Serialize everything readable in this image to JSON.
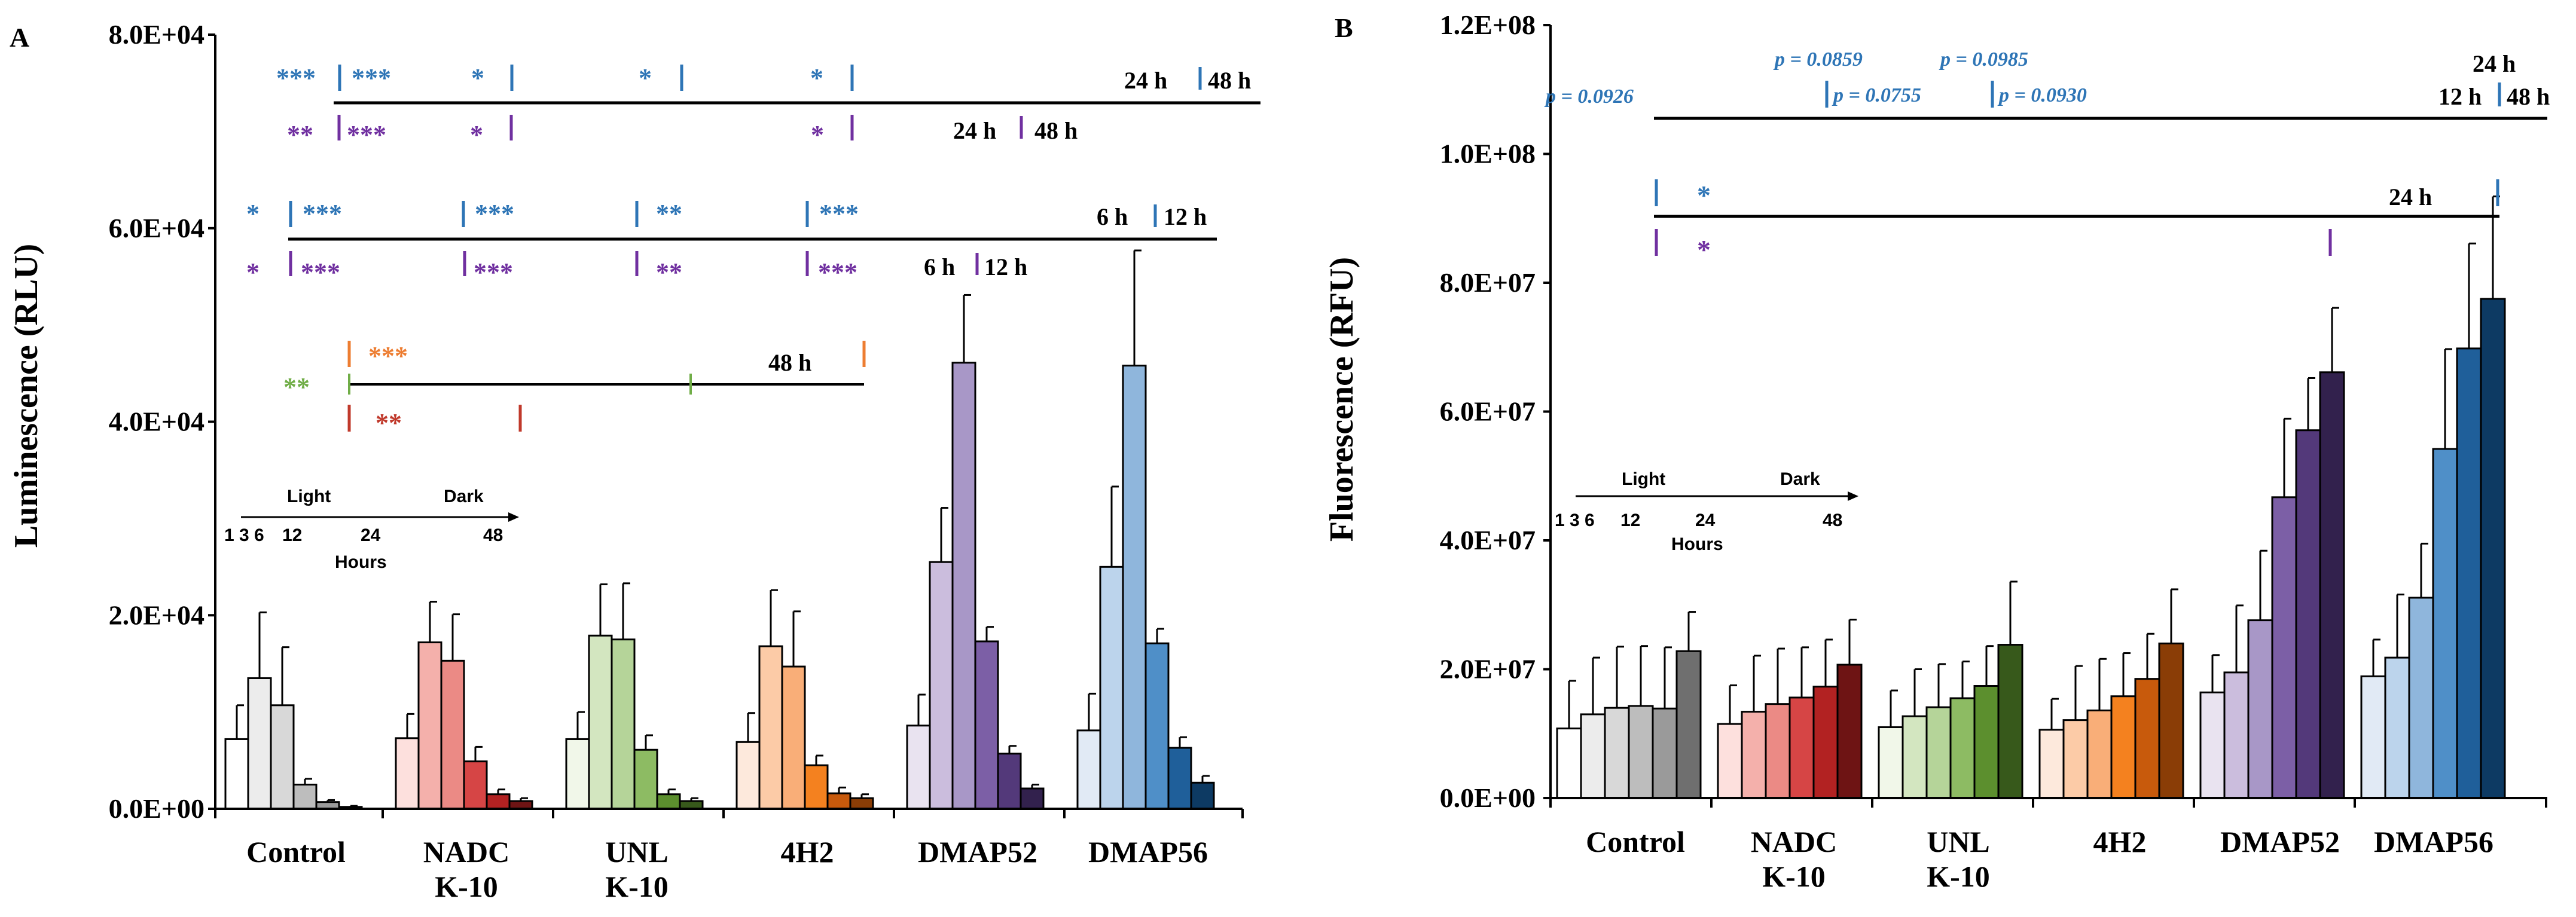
{
  "colors": {
    "axis": "#000000",
    "blue": "#2e75b6",
    "purple": "#7030a0",
    "orange": "#ed7d31",
    "green": "#70ad47",
    "red": "#c0392b"
  },
  "chart_data": [
    {
      "type": "bar",
      "panel_label": "A",
      "ylabel": "Luminescence (RLU)",
      "ylim": [
        0,
        80000
      ],
      "yticks": [
        "0.0E+00",
        "2.0E+04",
        "4.0E+04",
        "6.0E+04",
        "8.0E+04"
      ],
      "categories": [
        "Control",
        "NADC\nK-10",
        "UNL\nK-10",
        "4H2",
        "DMAP52",
        "DMAP56"
      ],
      "time_points": [
        "1 h",
        "3 h",
        "6 h",
        "12 h",
        "24 h",
        "48 h"
      ],
      "series": [
        {
          "name": "Control",
          "values": [
            7200,
            13500,
            10700,
            2500,
            700,
            200
          ],
          "errors": [
            3500,
            6800,
            6000,
            600,
            200,
            100
          ],
          "colors": [
            "#ffffff",
            "#ececec",
            "#d8d8d8",
            "#bdbdbd",
            "#9a9a9a",
            "#6f6f6f"
          ]
        },
        {
          "name": "NADC K-10",
          "values": [
            7300,
            17200,
            15300,
            4900,
            1500,
            800
          ],
          "errors": [
            2500,
            4200,
            4800,
            1500,
            500,
            300
          ],
          "colors": [
            "#fde0dd",
            "#f4b0ab",
            "#eb8a85",
            "#d64545",
            "#b22222",
            "#6e1414"
          ]
        },
        {
          "name": "UNL K-10",
          "values": [
            7200,
            17900,
            17500,
            6100,
            1500,
            800
          ],
          "errors": [
            2800,
            5300,
            5800,
            1500,
            500,
            300
          ],
          "colors": [
            "#f1f7e9",
            "#d3e6c0",
            "#b5d499",
            "#8dbb63",
            "#5c8f2e",
            "#37591b"
          ]
        },
        {
          "name": "4H2",
          "values": [
            6900,
            16800,
            14700,
            4500,
            1600,
            1100
          ],
          "errors": [
            3000,
            5800,
            5700,
            1000,
            600,
            400
          ],
          "colors": [
            "#fde9dc",
            "#fccba7",
            "#f9ae78",
            "#f4811f",
            "#c85a0c",
            "#8a3d06"
          ]
        },
        {
          "name": "DMAP52",
          "values": [
            8600,
            25500,
            46100,
            17300,
            5700,
            2100
          ],
          "errors": [
            3200,
            5600,
            7000,
            1500,
            800,
            400
          ],
          "colors": [
            "#e9e3f0",
            "#cbbddd",
            "#a897c7",
            "#7c5fa6",
            "#53397a",
            "#32214d"
          ]
        },
        {
          "name": "DMAP56",
          "values": [
            8100,
            25000,
            45800,
            17100,
            6300,
            2700
          ],
          "errors": [
            3800,
            8300,
            11900,
            1500,
            1100,
            700
          ],
          "colors": [
            "#e1eaf5",
            "#bcd4ec",
            "#8fb6dc",
            "#4f8fc8",
            "#1f5f9a",
            "#0d3a63"
          ]
        }
      ],
      "inset_legend": {
        "title": "Light",
        "dark": "Dark",
        "ticks": [
          "1 3 6",
          "12",
          "24",
          "48"
        ],
        "xlabel": "Hours"
      },
      "annotations": {
        "b1_blue_marks": [
          "***",
          "***",
          "*",
          "*",
          "*"
        ],
        "b1_label_24": "24 h",
        "b1_label_48": "48 h",
        "b1_purple_marks": [
          "**",
          "***",
          "*",
          "*"
        ],
        "b1_purple_24": "24 h",
        "b1_purple_48": "48 h",
        "b2_blue_marks": [
          "*",
          "***",
          "***",
          "**",
          "***"
        ],
        "b2_label_6": "6 h",
        "b2_label_12": "12 h",
        "b2_purple_marks": [
          "*",
          "***",
          "***",
          "**",
          "***"
        ],
        "b2_purple_6": "6 h",
        "b2_purple_12": "12 h",
        "b3_orange": "***",
        "b3_green": "**",
        "b3_red": "**",
        "b3_label_48": "48 h"
      }
    },
    {
      "type": "bar",
      "panel_label": "B",
      "ylabel": "Fluorescence (RFU)",
      "ylim": [
        0,
        120000000
      ],
      "yticks": [
        "0.0E+00",
        "2.0E+07",
        "4.0E+07",
        "6.0E+07",
        "8.0E+07",
        "1.0E+08",
        "1.2E+08"
      ],
      "categories": [
        "Control",
        "NADC\nK-10",
        "UNL\nK-10",
        "4H2",
        "DMAP52",
        "DMAP56"
      ],
      "time_points": [
        "1 h",
        "3 h",
        "6 h",
        "12 h",
        "24 h",
        "48 h"
      ],
      "series": [
        {
          "name": "Control",
          "values": [
            10800000,
            13000000,
            14000000,
            14300000,
            13900000,
            22800000
          ],
          "errors": [
            7400000,
            8800000,
            9500000,
            9300000,
            9500000,
            6100000
          ],
          "colors": [
            "#ffffff",
            "#ececec",
            "#d8d8d8",
            "#bdbdbd",
            "#9a9a9a",
            "#6f6f6f"
          ]
        },
        {
          "name": "NADC K-10",
          "values": [
            11500000,
            13400000,
            14600000,
            15600000,
            17300000,
            20700000
          ],
          "errors": [
            6000000,
            8700000,
            8600000,
            7800000,
            7300000,
            7000000
          ],
          "colors": [
            "#fde0dd",
            "#f4b0ab",
            "#eb8a85",
            "#d64545",
            "#b22222",
            "#6e1414"
          ]
        },
        {
          "name": "UNL K-10",
          "values": [
            11000000,
            12700000,
            14100000,
            15500000,
            17400000,
            23800000
          ],
          "errors": [
            5700000,
            7300000,
            6700000,
            5700000,
            6200000,
            9800000
          ],
          "colors": [
            "#f1f7e9",
            "#d3e6c0",
            "#b5d499",
            "#8dbb63",
            "#5c8f2e",
            "#37591b"
          ]
        },
        {
          "name": "4H2",
          "values": [
            10600000,
            12100000,
            13600000,
            15800000,
            18500000,
            24000000
          ],
          "errors": [
            4800000,
            8400000,
            8000000,
            6700000,
            7000000,
            8400000
          ],
          "colors": [
            "#fde9dc",
            "#fccba7",
            "#f9ae78",
            "#f4811f",
            "#c85a0c",
            "#8a3d06"
          ]
        },
        {
          "name": "DMAP52",
          "values": [
            16400000,
            19500000,
            27600000,
            46700000,
            57100000,
            66100000
          ],
          "errors": [
            5800000,
            10400000,
            10800000,
            12200000,
            8100000,
            10000000
          ],
          "colors": [
            "#e9e3f0",
            "#cbbddd",
            "#a897c7",
            "#7c5fa6",
            "#53397a",
            "#32214d"
          ]
        },
        {
          "name": "DMAP56",
          "values": [
            18900000,
            21800000,
            31100000,
            54200000,
            69800000,
            77500000
          ],
          "errors": [
            5700000,
            9800000,
            8400000,
            15500000,
            16300000,
            15900000
          ],
          "colors": [
            "#e1eaf5",
            "#bcd4ec",
            "#8fb6dc",
            "#4f8fc8",
            "#1f5f9a",
            "#0d3a63"
          ]
        }
      ],
      "inset_legend": {
        "title": "Light",
        "dark": "Dark",
        "ticks": [
          "1 3 6",
          "12",
          "24",
          "48"
        ],
        "xlabel": "Hours"
      },
      "annotations": {
        "p1": "p = 0.0926",
        "p2": "p = 0.0859",
        "p3": "p = 0.0755",
        "p4": "p = 0.0985",
        "p5": "p = 0.0930",
        "label_24_top": "24 h",
        "label_12": "12 h",
        "label_48": "48 h",
        "b2_blue": "*",
        "b2_label_24": "24 h",
        "b2_purple": "*"
      }
    }
  ]
}
